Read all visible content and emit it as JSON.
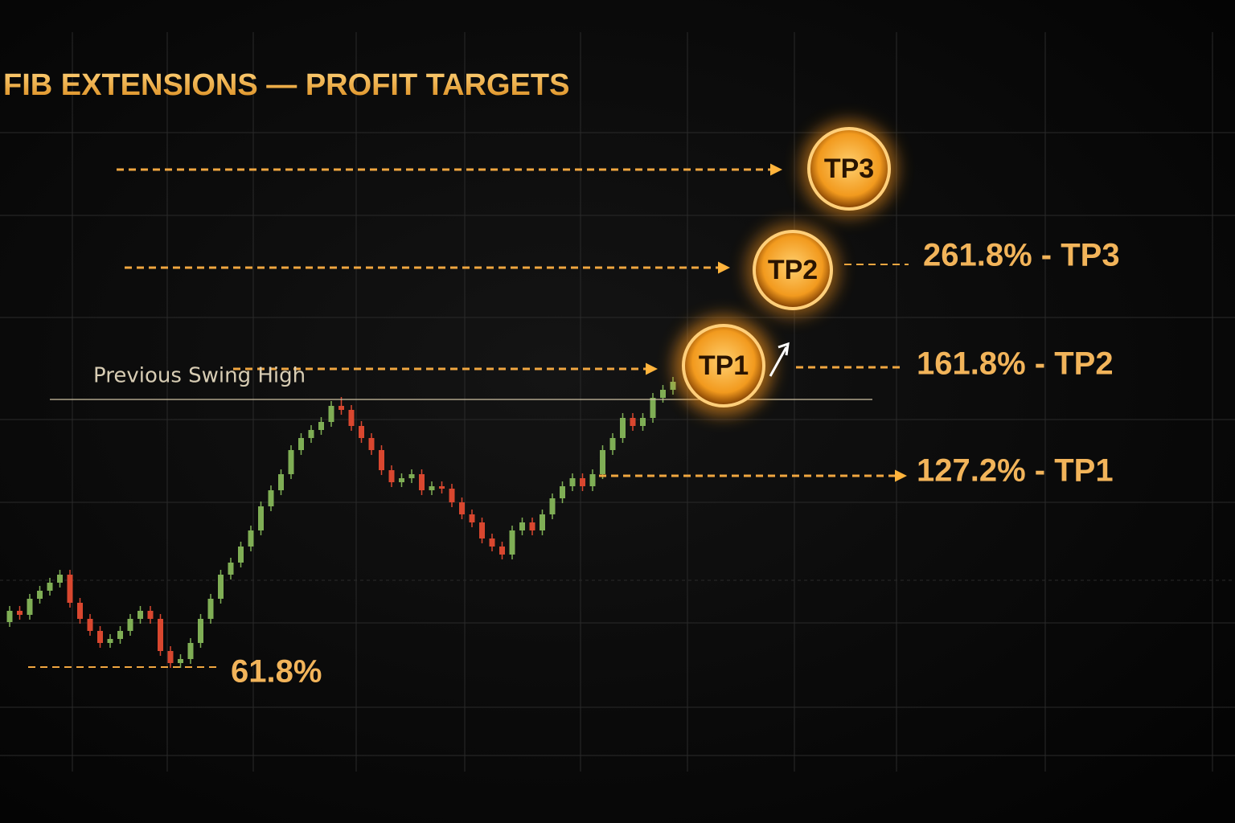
{
  "chart_data": {
    "type": "candlestick",
    "title": "FIB EXTENSIONS — PROFIT TARGETS",
    "ylim": [
      0,
      1024
    ],
    "up_color": "#7fae55",
    "down_color": "#d9472f",
    "open": [
      250,
      264,
      259,
      279,
      289,
      299,
      309,
      274,
      254,
      239,
      224,
      229,
      239,
      254,
      264,
      254,
      214,
      199,
      204,
      224,
      254,
      279,
      309,
      324,
      344,
      364,
      394,
      414,
      434,
      464,
      479,
      489,
      499,
      519,
      514,
      494,
      479,
      464,
      439,
      424,
      429,
      434,
      414,
      419,
      416,
      399,
      384,
      374,
      354,
      344,
      334,
      364,
      374,
      364,
      384,
      404,
      419,
      429,
      419,
      434,
      464,
      479,
      504,
      494,
      504,
      529,
      539
    ],
    "high": [
      270,
      270,
      285,
      295,
      305,
      315,
      315,
      280,
      260,
      245,
      235,
      245,
      260,
      270,
      270,
      260,
      220,
      210,
      230,
      260,
      285,
      315,
      330,
      350,
      370,
      400,
      420,
      440,
      470,
      485,
      495,
      505,
      525,
      530,
      520,
      500,
      485,
      470,
      445,
      435,
      440,
      440,
      425,
      425,
      422,
      405,
      390,
      380,
      360,
      350,
      370,
      380,
      380,
      390,
      410,
      425,
      435,
      435,
      440,
      470,
      485,
      510,
      510,
      510,
      535,
      545,
      555
    ],
    "low": [
      244,
      253,
      253,
      273,
      283,
      293,
      268,
      248,
      233,
      218,
      218,
      223,
      233,
      248,
      248,
      208,
      193,
      193,
      198,
      218,
      248,
      273,
      303,
      318,
      338,
      358,
      388,
      408,
      428,
      458,
      473,
      483,
      493,
      508,
      488,
      473,
      458,
      433,
      418,
      418,
      423,
      408,
      408,
      410,
      393,
      378,
      368,
      348,
      338,
      328,
      328,
      358,
      358,
      358,
      378,
      398,
      413,
      413,
      413,
      428,
      458,
      473,
      488,
      488,
      498,
      523,
      533
    ],
    "close": [
      264,
      259,
      279,
      289,
      299,
      309,
      274,
      254,
      239,
      224,
      229,
      239,
      254,
      264,
      254,
      214,
      199,
      204,
      224,
      254,
      279,
      309,
      324,
      344,
      364,
      394,
      414,
      434,
      464,
      479,
      489,
      499,
      519,
      514,
      494,
      479,
      464,
      439,
      424,
      429,
      434,
      414,
      419,
      416,
      399,
      384,
      374,
      354,
      344,
      334,
      364,
      374,
      364,
      384,
      404,
      419,
      429,
      419,
      434,
      464,
      479,
      504,
      494,
      504,
      529,
      539,
      549
    ],
    "targets": [
      "TP3",
      "TP2",
      "TP1"
    ],
    "level_labels": [
      "261.8% - TP3",
      "161.8% - TP2",
      "127.2% - TP1"
    ],
    "swing_high_label": "Previous Swing High",
    "retracement_label": "61.8%"
  }
}
